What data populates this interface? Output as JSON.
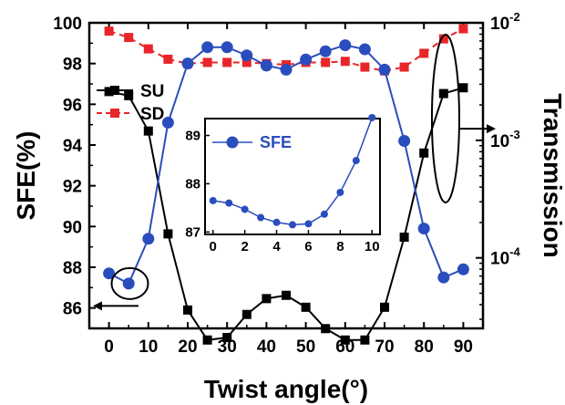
{
  "chart_data": [
    {
      "type": "line",
      "xlabel": "Twist angle(°)",
      "ylabel": "SFE(%)",
      "y2label": "Transmission",
      "xlim": [
        -5,
        95
      ],
      "ylim": [
        85,
        100
      ],
      "y2lim_log10": [
        -4.6,
        -2
      ],
      "xticks": [
        0,
        10,
        20,
        30,
        40,
        50,
        60,
        70,
        80,
        90
      ],
      "yticks": [
        86,
        88,
        90,
        92,
        94,
        96,
        98,
        100
      ],
      "y2ticks": [
        {
          "value": 0.0001,
          "base": "10",
          "exp": "-4"
        },
        {
          "value": 0.001,
          "base": "10",
          "exp": "-3"
        },
        {
          "value": 0.01,
          "base": "10",
          "exp": "-2"
        }
      ],
      "x": [
        0,
        5,
        10,
        15,
        20,
        25,
        30,
        35,
        40,
        45,
        50,
        55,
        60,
        65,
        70,
        75,
        80,
        85,
        90
      ],
      "series": [
        {
          "name": "SU",
          "axis": "right",
          "color": "#000000",
          "marker": "square",
          "line": "solid",
          "values": [
            0.0026,
            0.0024,
            0.0012,
            0.00016,
            3.6e-05,
            2e-05,
            2.1e-05,
            3.3e-05,
            4.5e-05,
            4.8e-05,
            3.8e-05,
            2.5e-05,
            2e-05,
            2e-05,
            3.8e-05,
            0.00015,
            0.00078,
            0.0025,
            0.0028
          ]
        },
        {
          "name": "SD",
          "axis": "right",
          "color": "#e8262a",
          "marker": "square",
          "line": "dashed",
          "values": [
            0.0085,
            0.0075,
            0.006,
            0.0049,
            0.0045,
            0.0046,
            0.0046,
            0.0046,
            0.0045,
            0.0044,
            0.0046,
            0.0046,
            0.0047,
            0.0042,
            0.0039,
            0.0042,
            0.0055,
            0.0073,
            0.0089
          ]
        },
        {
          "name": "SFE",
          "axis": "left",
          "color": "#2a4dbd",
          "marker": "circle",
          "line": "solid",
          "values": [
            87.7,
            87.2,
            89.4,
            95.1,
            98.0,
            98.8,
            98.8,
            98.4,
            97.9,
            97.7,
            98.2,
            98.6,
            98.9,
            98.7,
            97.7,
            94.2,
            89.9,
            87.5,
            87.9
          ]
        }
      ]
    },
    {
      "type": "line",
      "inset": true,
      "xlim": [
        -0.5,
        10.5
      ],
      "ylim": [
        86.95,
        89.35
      ],
      "xticks": [
        0,
        2,
        4,
        6,
        8,
        10
      ],
      "yticks": [
        87,
        88,
        89
      ],
      "x": [
        0,
        1,
        2,
        3,
        4,
        5,
        6,
        7,
        8,
        9,
        10
      ],
      "series": [
        {
          "name": "SFE",
          "color": "#2a4dbd",
          "marker": "circle",
          "line": "solid",
          "values": [
            87.65,
            87.6,
            87.47,
            87.3,
            87.2,
            87.15,
            87.17,
            87.37,
            87.82,
            88.48,
            89.37
          ]
        }
      ]
    }
  ]
}
